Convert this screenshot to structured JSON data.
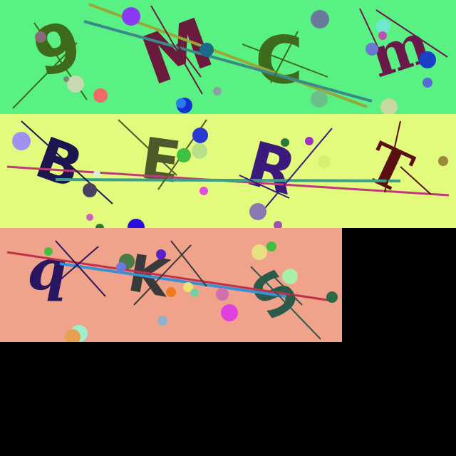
{
  "captcha": {
    "rows": [
      {
        "background": "#5af184",
        "chars": [
          {
            "text": "9",
            "color": "#3e6a1b"
          },
          {
            "text": "M",
            "color": "#6a1a3a"
          },
          {
            "text": "C",
            "color": "#3e6a1b"
          },
          {
            "text": "m",
            "color": "#6a1a4a"
          }
        ]
      },
      {
        "background": "#e2fb7d",
        "chars": [
          {
            "text": "B",
            "color": "#1c1550"
          },
          {
            "text": "E",
            "color": "#4e5a2a"
          },
          {
            "text": "R",
            "color": "#3a1a7a"
          },
          {
            "text": "T",
            "color": "#5a1010"
          }
        ]
      },
      {
        "background": "#f0a28a",
        "chars": [
          {
            "text": "q",
            "color": "#2a1560"
          },
          {
            "text": "K",
            "color": "#3a3a3a"
          },
          {
            "text": "S",
            "color": "#2a5a4a"
          }
        ]
      }
    ],
    "empty_fill": "#000000"
  }
}
